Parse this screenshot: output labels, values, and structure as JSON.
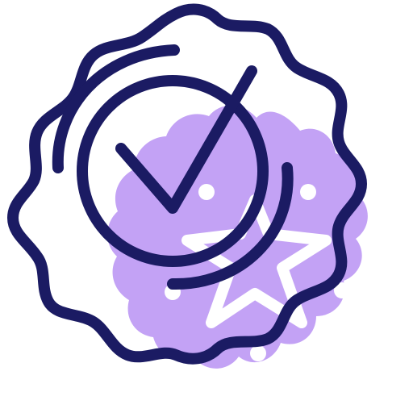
{
  "icon": {
    "name": "verified-badge-icon",
    "colors": {
      "outline": "#1b1b63",
      "accent_fill": "#c3a2f5",
      "inner_white": "#ffffff"
    }
  }
}
